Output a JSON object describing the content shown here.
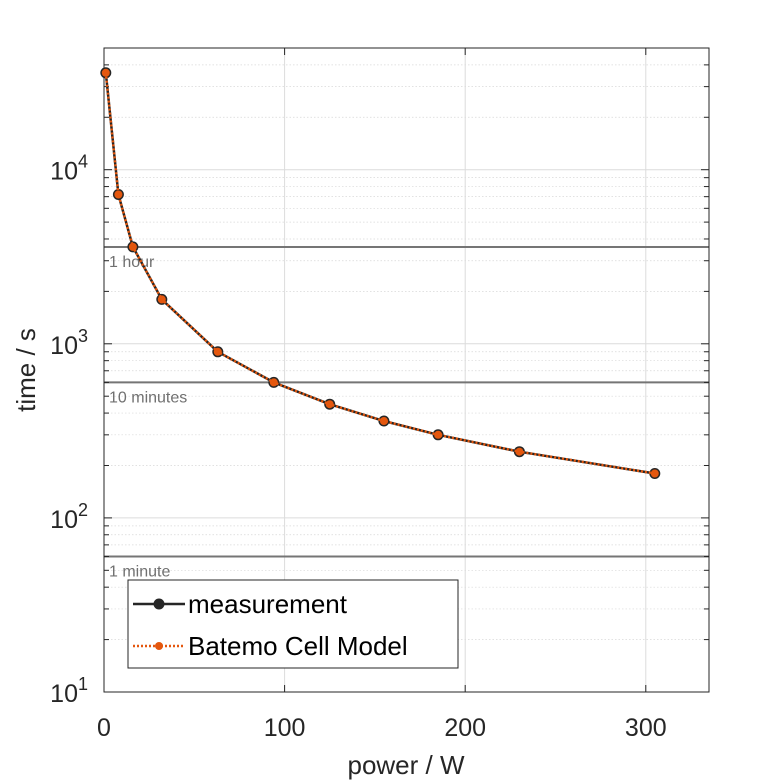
{
  "chart_data": {
    "type": "line",
    "title": "",
    "xlabel": "power / W",
    "ylabel": "time / s",
    "xlim": [
      0,
      335
    ],
    "ylim": [
      10,
      50000
    ],
    "yscale": "log",
    "grid": true,
    "legend_position": "bottom-left",
    "x_ticks": [
      {
        "value": 0,
        "label": "0"
      },
      {
        "value": 100,
        "label": "100"
      },
      {
        "value": 200,
        "label": "200"
      },
      {
        "value": 300,
        "label": "300"
      }
    ],
    "y_ticks": [
      {
        "value": 10,
        "base": "10",
        "exp": "1"
      },
      {
        "value": 100,
        "base": "10",
        "exp": "2"
      },
      {
        "value": 1000,
        "base": "10",
        "exp": "3"
      },
      {
        "value": 10000,
        "base": "10",
        "exp": "4"
      }
    ],
    "reference_lines": [
      {
        "y": 3600,
        "label": "1 hour"
      },
      {
        "y": 600,
        "label": "10 minutes"
      },
      {
        "y": 60,
        "label": "1 minute"
      }
    ],
    "series": [
      {
        "name": "measurement",
        "color": "#262626",
        "style": "solid",
        "x": [
          1,
          8,
          16,
          32,
          63,
          94,
          125,
          155,
          185,
          230,
          305
        ],
        "y": [
          36000,
          7200,
          3600,
          1800,
          900,
          600,
          450,
          360,
          300,
          240,
          180
        ]
      },
      {
        "name": "Batemo Cell Model",
        "color": "#E4570E",
        "style": "dotted",
        "x": [
          1,
          8,
          16,
          32,
          63,
          94,
          125,
          155,
          185,
          230,
          305
        ],
        "y": [
          36000,
          7200,
          3600,
          1800,
          900,
          600,
          450,
          360,
          300,
          240,
          180
        ]
      }
    ]
  }
}
